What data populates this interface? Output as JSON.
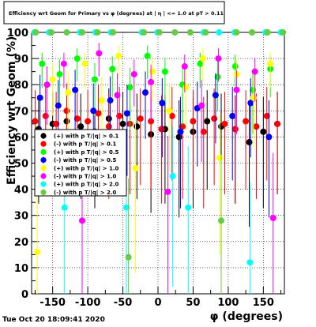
{
  "timestamp": "Tue Oct 20 18:09:41 2020",
  "chart_data": {
    "type": "scatter",
    "title": "Efficiency wrt Geom for Primary vs φ (degrees) at | η | <= 1.0 at pT > 0.11",
    "xlabel": "φ (degrees)",
    "ylabel": "Efficiency wrt Geom (%)",
    "xlim": [
      -180,
      180
    ],
    "ylim": [
      0,
      100
    ],
    "x_ticks": [
      -150,
      -100,
      -50,
      0,
      50,
      100,
      150
    ],
    "y_ticks": [
      0,
      10,
      20,
      30,
      40,
      50,
      60,
      70,
      80,
      90,
      100
    ],
    "grid": true,
    "legend_position": "left-middle",
    "series": [
      {
        "name": "(+) with p T/|q| > 0.1",
        "color": "#000000",
        "x": [
          -170,
          -150,
          -130,
          -110,
          -90,
          -70,
          -50,
          -30,
          -10,
          10,
          30,
          50,
          70,
          90,
          110,
          130,
          150,
          170
        ],
        "y": [
          63,
          65,
          66,
          64,
          62,
          67,
          65,
          64,
          61,
          63,
          60,
          62,
          66,
          64,
          63,
          58,
          62,
          65
        ]
      },
      {
        "name": "(-) with p T/|q| > 0.1",
        "color": "#ff0000",
        "x": [
          -175,
          -160,
          -145,
          -130,
          -115,
          -100,
          -85,
          -70,
          -55,
          -40,
          -25,
          -10,
          5,
          20,
          35,
          50,
          65,
          80,
          95,
          110,
          125,
          140,
          155,
          170
        ],
        "y": [
          66,
          68,
          65,
          70,
          67,
          66,
          69,
          64,
          68,
          65,
          67,
          66,
          63,
          68,
          64,
          66,
          62,
          67,
          65,
          63,
          66,
          64,
          68,
          65
        ]
      },
      {
        "name": "(+) with p T/|q| > 0.5",
        "color": "#00ff00",
        "x": [
          -165,
          -140,
          -115,
          -90,
          -65,
          -40,
          -15,
          10,
          35,
          60,
          85,
          110,
          135,
          160
        ],
        "y": [
          88,
          84,
          90,
          82,
          86,
          79,
          91,
          85,
          80,
          88,
          83,
          87,
          78,
          86
        ]
      },
      {
        "name": "(-) with p T/|q| > 0.5",
        "color": "#0000ff",
        "x": [
          -168,
          -142,
          -118,
          -92,
          -68,
          -44,
          -18,
          6,
          32,
          56,
          82,
          106,
          132,
          158
        ],
        "y": [
          75,
          72,
          78,
          70,
          74,
          69,
          77,
          73,
          62,
          71,
          76,
          68,
          73,
          60
        ]
      },
      {
        "name": "(+) with p T/|q| > 1.0",
        "color": "#ffff00",
        "x": [
          -172,
          -150,
          -128,
          -104,
          -80,
          -56,
          -32,
          -8,
          16,
          40,
          64,
          88,
          112,
          136,
          160
        ],
        "y": [
          16,
          82,
          77,
          88,
          74,
          91,
          48,
          85,
          70,
          79,
          90,
          52,
          84,
          75,
          88
        ]
      },
      {
        "name": "(-) with p T/|q| > 1.0",
        "color": "#ff00ff",
        "x": [
          -158,
          -134,
          -108,
          -84,
          -58,
          -34,
          -10,
          14,
          38,
          62,
          86,
          112,
          138,
          164
        ],
        "y": [
          80,
          88,
          28,
          92,
          76,
          84,
          81,
          39,
          87,
          72,
          90,
          78,
          85,
          29
        ]
      },
      {
        "name": "(+) with p T/|q| > 2.0",
        "color": "#00ffff",
        "x": [
          -176,
          -155,
          -133,
          -111,
          -89,
          -67,
          -45,
          -23,
          -1,
          21,
          43,
          65,
          87,
          109,
          131,
          153,
          175
        ],
        "y": [
          100,
          100,
          33,
          100,
          100,
          100,
          33,
          100,
          100,
          45,
          33,
          100,
          100,
          100,
          12,
          100,
          100
        ]
      },
      {
        "name": "(-) with p T/|q| > 2.0",
        "color": "#66cc44",
        "x": [
          -174,
          -152,
          -130,
          -108,
          -86,
          -64,
          -42,
          -20,
          2,
          24,
          46,
          68,
          90,
          112,
          134,
          156,
          178
        ],
        "y": [
          100,
          100,
          100,
          100,
          100,
          100,
          14,
          100,
          100,
          100,
          100,
          100,
          28,
          100,
          100,
          100,
          100
        ]
      }
    ]
  }
}
